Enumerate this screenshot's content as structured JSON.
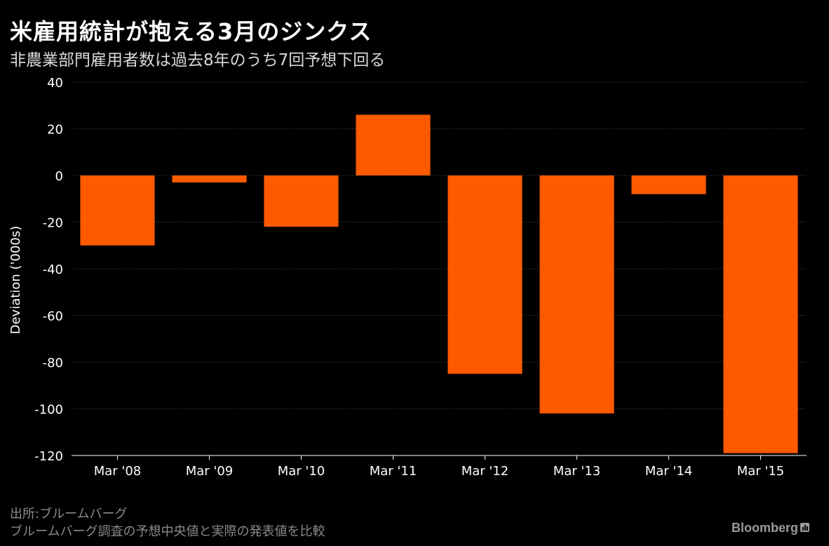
{
  "header": {
    "title": "米雇用統計が抱える3月のジンクス",
    "subtitle": "非農業部門雇用者数は過去8年のうち7回予想下回る"
  },
  "footer": {
    "source": "出所:ブルームバーグ",
    "note": "ブルームバーグ調査の予想中央値と実際の発表値を比較",
    "brand": "Bloomberg",
    "brand_icon": "bloomberg-terminal-icon"
  },
  "colors": {
    "background": "#000000",
    "bar": "#ff5a00",
    "grid": "#5a5a5a",
    "axis_text": "#ffffff"
  },
  "chart_data": {
    "type": "bar",
    "categories": [
      "Mar '08",
      "Mar '09",
      "Mar '10",
      "Mar '11",
      "Mar '12",
      "Mar '13",
      "Mar '14",
      "Mar '15"
    ],
    "values": [
      -30,
      -3,
      -22,
      26,
      -85,
      -102,
      -8,
      -119
    ],
    "ylabel": "Deviation ('000s)",
    "xlabel": "",
    "ylim": [
      -120,
      40
    ],
    "yticks": [
      40,
      20,
      0,
      -20,
      -40,
      -60,
      -80,
      -100,
      -120
    ],
    "grid": true,
    "grid_style": "dotted"
  }
}
